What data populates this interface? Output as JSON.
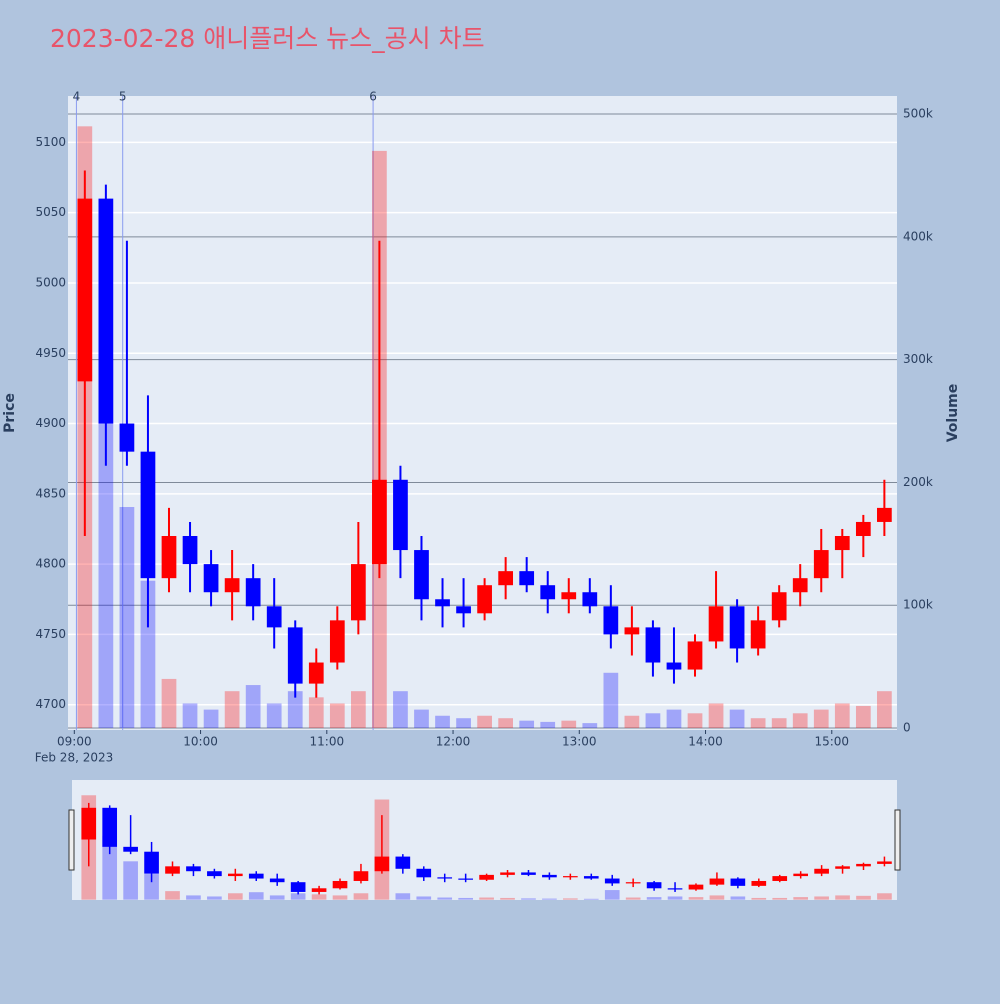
{
  "chart_data": {
    "type": "candlestick",
    "title": "2023-02-28 애니플러스 뉴스_공시 차트",
    "y_label": "Price",
    "y2_label": "Volume",
    "x_sublabel": "Feb 28, 2023",
    "up_color": "#ff0000",
    "down_color": "#0000ff",
    "xlim": [
      "08:57",
      "15:31"
    ],
    "xticks": [
      "09:00",
      "10:00",
      "11:00",
      "12:00",
      "13:00",
      "14:00",
      "15:00"
    ],
    "ylim": [
      4682,
      5133
    ],
    "yticks": [
      4700,
      4750,
      4800,
      4850,
      4900,
      4950,
      5000,
      5050,
      5100
    ],
    "y2lim": [
      -1600,
      514700
    ],
    "y2ticks": [
      0,
      {
        "value": 100000,
        "label": "100k"
      },
      {
        "value": 200000,
        "label": "200k"
      },
      {
        "value": 300000,
        "label": "300k"
      },
      {
        "value": 400000,
        "label": "400k"
      },
      {
        "value": 500000,
        "label": "500k"
      }
    ],
    "events": [
      {
        "x": "09:01",
        "label": "4"
      },
      {
        "x": "09:23",
        "label": "5"
      },
      {
        "x": "11:22",
        "label": "6"
      }
    ],
    "x": [
      "09:00",
      "09:10",
      "09:20",
      "09:30",
      "09:40",
      "09:50",
      "10:00",
      "10:10",
      "10:20",
      "10:30",
      "10:40",
      "10:50",
      "11:00",
      "11:10",
      "11:20",
      "11:30",
      "11:40",
      "11:50",
      "12:00",
      "12:10",
      "12:20",
      "12:30",
      "12:40",
      "12:50",
      "13:00",
      "13:10",
      "13:20",
      "13:30",
      "13:40",
      "13:50",
      "14:00",
      "14:10",
      "14:20",
      "14:30",
      "14:40",
      "14:50",
      "15:00",
      "15:10",
      "15:20"
    ],
    "open": [
      4930,
      5060,
      4900,
      4880,
      4790,
      4820,
      4800,
      4780,
      4790,
      4770,
      4755,
      4715,
      4730,
      4760,
      4800,
      4860,
      4810,
      4775,
      4770,
      4765,
      4785,
      4795,
      4785,
      4775,
      4780,
      4770,
      4750,
      4755,
      4730,
      4725,
      4745,
      4770,
      4740,
      4760,
      4780,
      4790,
      4810,
      4820,
      4830
    ],
    "high": [
      5080,
      5070,
      5030,
      4920,
      4840,
      4830,
      4810,
      4810,
      4800,
      4790,
      4760,
      4740,
      4770,
      4830,
      5030,
      4870,
      4820,
      4790,
      4790,
      4790,
      4805,
      4805,
      4795,
      4790,
      4790,
      4785,
      4770,
      4760,
      4755,
      4750,
      4795,
      4775,
      4770,
      4785,
      4800,
      4825,
      4825,
      4835,
      4860
    ],
    "low": [
      4820,
      4870,
      4870,
      4755,
      4780,
      4780,
      4770,
      4760,
      4760,
      4740,
      4705,
      4705,
      4725,
      4750,
      4790,
      4790,
      4760,
      4755,
      4755,
      4760,
      4775,
      4780,
      4765,
      4765,
      4765,
      4740,
      4735,
      4720,
      4715,
      4720,
      4740,
      4730,
      4735,
      4755,
      4770,
      4780,
      4790,
      4805,
      4820
    ],
    "close": [
      5060,
      4900,
      4880,
      4790,
      4820,
      4800,
      4780,
      4790,
      4770,
      4755,
      4715,
      4730,
      4760,
      4800,
      4860,
      4810,
      4775,
      4770,
      4765,
      4785,
      4795,
      4785,
      4775,
      4780,
      4770,
      4750,
      4755,
      4730,
      4725,
      4745,
      4770,
      4740,
      4760,
      4780,
      4790,
      4810,
      4820,
      4830,
      4840
    ],
    "volume": [
      490000,
      300000,
      180000,
      120000,
      40000,
      20000,
      15000,
      30000,
      35000,
      20000,
      30000,
      25000,
      20000,
      30000,
      470000,
      30000,
      15000,
      10000,
      8000,
      10000,
      8000,
      6000,
      5000,
      6000,
      4000,
      45000,
      10000,
      12000,
      15000,
      12000,
      20000,
      15000,
      8000,
      8000,
      12000,
      15000,
      20000,
      18000,
      30000
    ]
  }
}
